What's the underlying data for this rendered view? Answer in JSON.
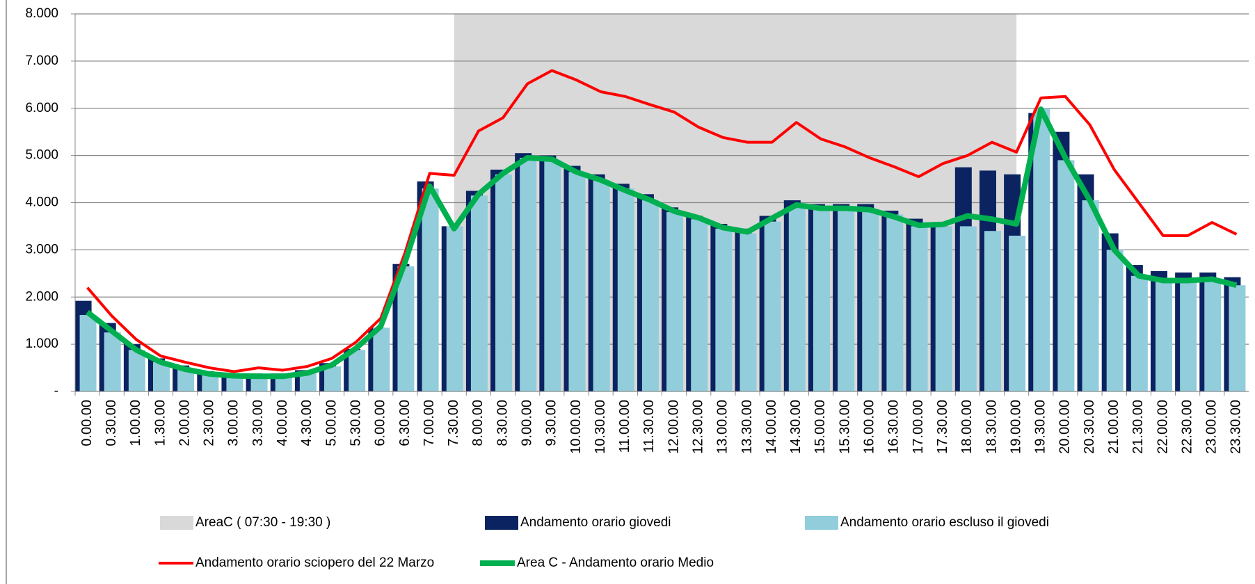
{
  "chart_data": {
    "type": "bar",
    "categories": [
      "0.00.00",
      "0.30.00",
      "1.00.00",
      "1.30.00",
      "2.00.00",
      "2.30.00",
      "3.00.00",
      "3.30.00",
      "4.00.00",
      "4.30.00",
      "5.00.00",
      "5.30.00",
      "6.00.00",
      "6.30.00",
      "7.00.00",
      "7.30.00",
      "8.00.00",
      "8.30.00",
      "9.00.00",
      "9.30.00",
      "10.00.00",
      "10.30.00",
      "11.00.00",
      "11.30.00",
      "12.00.00",
      "12.30.00",
      "13.00.00",
      "13.30.00",
      "14.00.00",
      "14.30.00",
      "15.00.00",
      "15.30.00",
      "16.00.00",
      "16.30.00",
      "17.00.00",
      "17.30.00",
      "18.00.00",
      "18.30.00",
      "19.00.00",
      "19.30.00",
      "20.00.00",
      "20.30.00",
      "21.00.00",
      "21.30.00",
      "22.00.00",
      "22.30.00",
      "23.00.00",
      "23.30.00"
    ],
    "series": [
      {
        "name": "AreaC  ( 07:30 - 19:30 )",
        "kind": "area",
        "color": "#d9d9d9",
        "values": [
          null,
          null,
          null,
          null,
          null,
          null,
          null,
          null,
          null,
          null,
          null,
          null,
          null,
          null,
          null,
          8000,
          8000,
          8000,
          8000,
          8000,
          8000,
          8000,
          8000,
          8000,
          8000,
          8000,
          8000,
          8000,
          8000,
          8000,
          8000,
          8000,
          8000,
          8000,
          8000,
          8000,
          8000,
          8000,
          8000,
          null,
          null,
          null,
          null,
          null,
          null,
          null,
          null,
          null
        ]
      },
      {
        "name": "Andamento orario giovedi",
        "kind": "bar",
        "color": "#0b2461",
        "values": [
          1920,
          1450,
          1000,
          700,
          550,
          430,
          380,
          380,
          380,
          450,
          600,
          900,
          1350,
          2700,
          4450,
          3500,
          4250,
          4700,
          5050,
          5000,
          4780,
          4600,
          4400,
          4180,
          3900,
          3720,
          3550,
          3450,
          3720,
          4050,
          3970,
          3970,
          3970,
          3830,
          3660,
          3550,
          4750,
          4680,
          4600,
          5900,
          5500,
          4600,
          3350,
          2680,
          2550,
          2520,
          2520,
          2420
        ]
      },
      {
        "name": "Andamento orario escluso il giovedi",
        "kind": "bar",
        "color": "#92cddc",
        "values": [
          1620,
          1250,
          880,
          620,
          470,
          370,
          330,
          320,
          320,
          380,
          530,
          880,
          1350,
          2650,
          4300,
          3500,
          4150,
          4600,
          4950,
          4900,
          4650,
          4480,
          4300,
          4050,
          3800,
          3650,
          3450,
          3350,
          3600,
          3900,
          3850,
          3850,
          3850,
          3750,
          3500,
          3500,
          3500,
          3400,
          3300,
          6000,
          4900,
          4050,
          3000,
          2450,
          2350,
          2350,
          2350,
          2250
        ]
      },
      {
        "name": "Andamento orario sciopero del  22 Marzo",
        "kind": "line",
        "color": "#ff0000",
        "width": 4,
        "values": [
          2200,
          1600,
          1100,
          750,
          620,
          500,
          420,
          500,
          450,
          530,
          700,
          1050,
          1550,
          2950,
          4620,
          4580,
          5520,
          5800,
          6520,
          6800,
          6600,
          6350,
          6250,
          6080,
          5920,
          5600,
          5380,
          5280,
          5280,
          5700,
          5350,
          5180,
          4950,
          4760,
          4550,
          4830,
          5000,
          5280,
          5070,
          6220,
          6250,
          5650,
          4700,
          4000,
          3300,
          3300,
          3580,
          3330
        ]
      },
      {
        "name": "Area C - Andamento orario Medio",
        "kind": "line",
        "color": "#00b050",
        "width": 8,
        "values": [
          1680,
          1280,
          880,
          620,
          470,
          370,
          330,
          320,
          320,
          390,
          560,
          920,
          1380,
          2750,
          4350,
          3450,
          4180,
          4620,
          4950,
          4920,
          4650,
          4480,
          4260,
          4060,
          3820,
          3680,
          3470,
          3380,
          3670,
          3950,
          3880,
          3880,
          3850,
          3700,
          3520,
          3540,
          3720,
          3650,
          3550,
          5980,
          4950,
          4050,
          3000,
          2450,
          2350,
          2350,
          2380,
          2250
        ]
      }
    ],
    "ylim": [
      0,
      8000
    ],
    "yticks": [
      {
        "value": 0,
        "label": "-"
      },
      {
        "value": 1000,
        "label": "1.000"
      },
      {
        "value": 2000,
        "label": "2.000"
      },
      {
        "value": 3000,
        "label": "3.000"
      },
      {
        "value": 4000,
        "label": "4.000"
      },
      {
        "value": 5000,
        "label": "5.000"
      },
      {
        "value": 6000,
        "label": "6.000"
      },
      {
        "value": 7000,
        "label": "7.000"
      },
      {
        "value": 8000,
        "label": "8.000"
      }
    ],
    "grid": true
  }
}
